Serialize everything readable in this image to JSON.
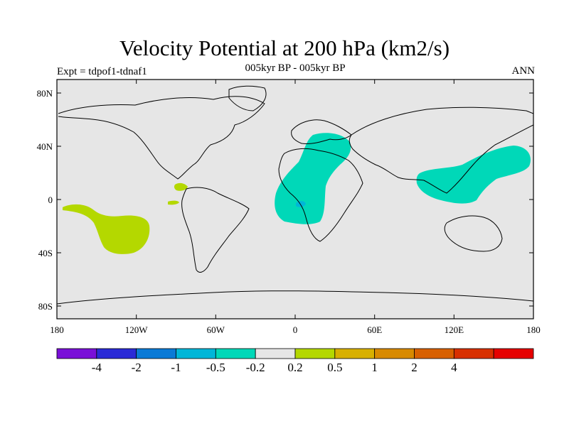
{
  "header": {
    "title": "Velocity Potential at 200 hPa (km2/s)",
    "left": "Expt = tdpof1-tdnaf1",
    "center": "005kyr BP - 005kyr BP",
    "right": "ANN"
  },
  "axes": {
    "lat_labels": [
      "80N",
      "40N",
      "0",
      "40S",
      "80S"
    ],
    "lon_labels": [
      "180",
      "120W",
      "60W",
      "0",
      "60E",
      "120E",
      "180"
    ]
  },
  "colorbar": {
    "colors": [
      "#7a0fd8",
      "#2a2ad6",
      "#0a7ad6",
      "#00b6d8",
      "#00d8b8",
      "#e6e6e6",
      "#b4d800",
      "#d8b000",
      "#d88a00",
      "#d86000",
      "#d83000",
      "#e60000"
    ],
    "labels": [
      "-4",
      "-2",
      "-1",
      "-0.5",
      "-0.2",
      "0.2",
      "0.5",
      "1",
      "2",
      "4"
    ]
  },
  "colors": {
    "ocean_background": "#e6e6e6",
    "negative_fill": "#00d8b8",
    "negative_core": "#00b6d8",
    "positive_fill": "#b4d800"
  }
}
